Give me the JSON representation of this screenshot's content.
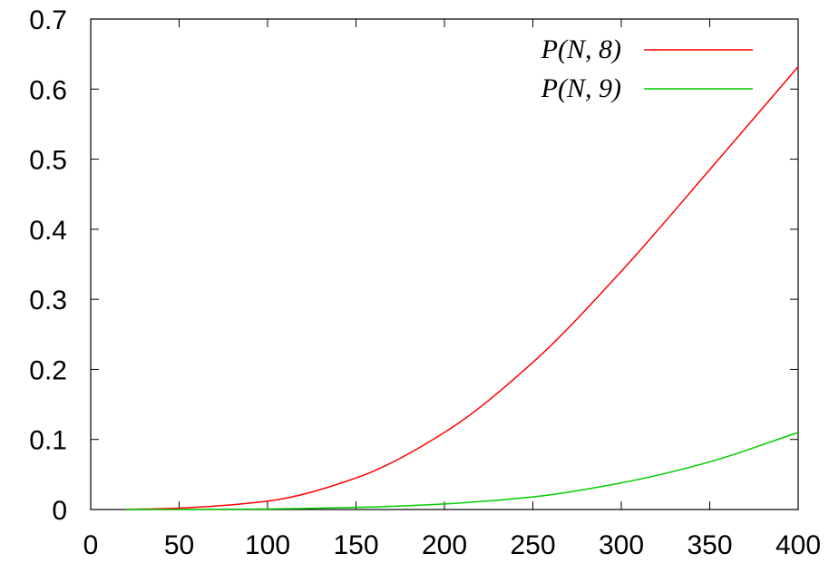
{
  "chart_data": {
    "type": "line",
    "title": "",
    "xlabel": "",
    "ylabel": "",
    "xlim": [
      0,
      400
    ],
    "ylim": [
      0,
      0.7
    ],
    "grid": false,
    "legend_position": "top-right",
    "x_ticks": [
      "0",
      "50",
      "100",
      "150",
      "200",
      "250",
      "300",
      "350",
      "400"
    ],
    "y_ticks": [
      "0",
      "0.1",
      "0.2",
      "0.3",
      "0.4",
      "0.5",
      "0.6",
      "0.7"
    ],
    "series": [
      {
        "name": "P(N, 8)",
        "color": "#ff0000",
        "x": [
          20,
          50,
          100,
          150,
          200,
          250,
          300,
          350,
          400
        ],
        "y": [
          0.0,
          0.002,
          0.012,
          0.045,
          0.11,
          0.21,
          0.34,
          0.485,
          0.632
        ]
      },
      {
        "name": "P(N, 9)",
        "color": "#00cc00",
        "x": [
          20,
          50,
          100,
          150,
          200,
          250,
          300,
          350,
          400
        ],
        "y": [
          0.0,
          0.0,
          0.0007,
          0.003,
          0.008,
          0.018,
          0.038,
          0.068,
          0.11
        ]
      }
    ]
  }
}
